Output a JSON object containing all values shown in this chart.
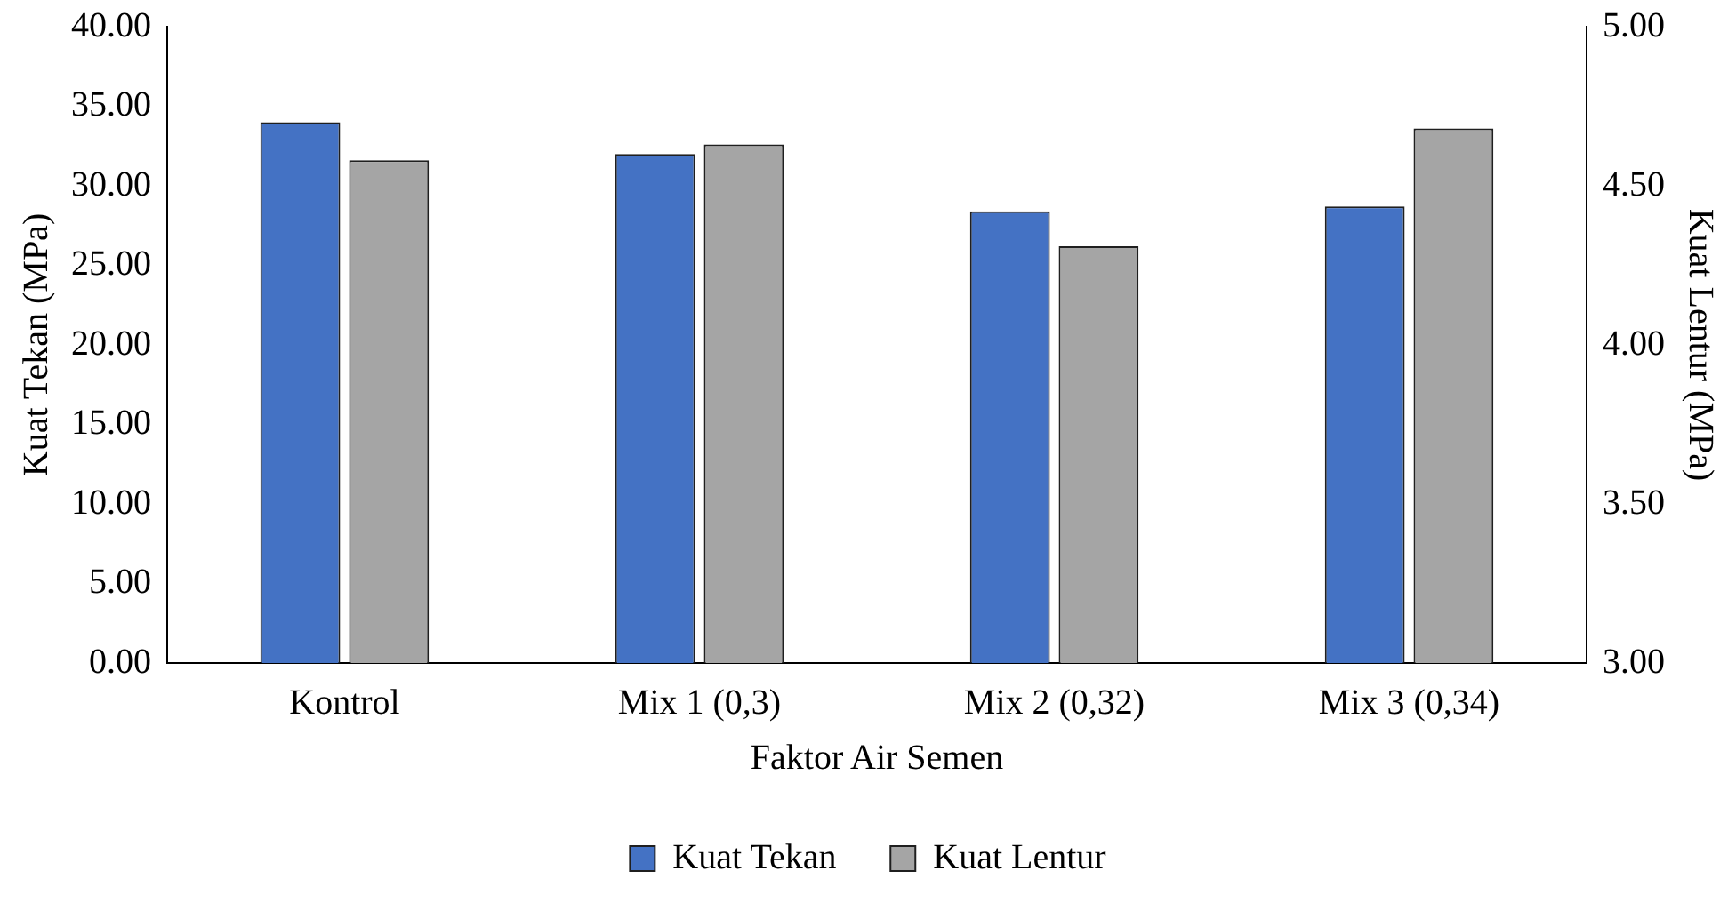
{
  "chart_data": {
    "type": "bar",
    "xlabel": "Faktor Air Semen",
    "ylabel": "Kuat Tekan (MPa)",
    "y2label": "Kuat Lentur (MPa)",
    "categories": [
      "Kontrol",
      "Mix 1 (0,3)",
      "Mix 2 (0,32)",
      "Mix 3 (0,34)"
    ],
    "series": [
      {
        "name": "Kuat Tekan",
        "color": "#4472c4",
        "values": [
          34.0,
          32.0,
          28.4,
          28.7
        ]
      },
      {
        "name": "Kuat Lentur",
        "color": "#a5a5a5",
        "axis": "y2",
        "values": [
          4.58,
          4.63,
          4.31,
          4.68
        ]
      }
    ],
    "ylim": [
      0,
      40
    ],
    "yticks": [
      {
        "value": 0,
        "label": "0.00"
      },
      {
        "value": 5,
        "label": "5.00"
      },
      {
        "value": 10,
        "label": "10.00"
      },
      {
        "value": 15,
        "label": "15.00"
      },
      {
        "value": 20,
        "label": "20.00"
      },
      {
        "value": 25,
        "label": "25.00"
      },
      {
        "value": 30,
        "label": "30.00"
      },
      {
        "value": 35,
        "label": "35.00"
      },
      {
        "value": 40,
        "label": "40.00"
      }
    ],
    "y2lim": [
      3,
      5
    ],
    "y2ticks": [
      {
        "value": 3,
        "label": "3.00"
      },
      {
        "value": 3.5,
        "label": "3.50"
      },
      {
        "value": 4,
        "label": "4.00"
      },
      {
        "value": 4.5,
        "label": "4.50"
      },
      {
        "value": 5,
        "label": "5.00"
      }
    ],
    "grid": false,
    "legend": "bottom"
  }
}
